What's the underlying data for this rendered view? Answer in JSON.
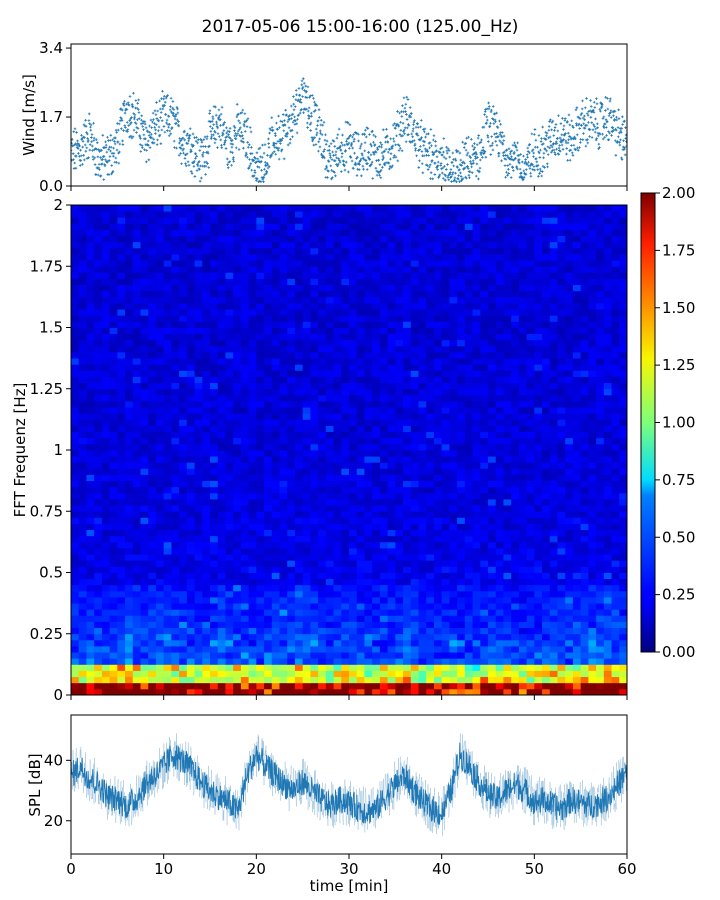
{
  "figure": {
    "title": "2017-05-06 15:00-16:00 (125.00_Hz)"
  },
  "colors": {
    "series": "#1f77b4",
    "frame": "#000000"
  },
  "chart_data": [
    {
      "type": "scatter",
      "ylabel": "Wind [m/s]",
      "xlim": [
        0,
        60
      ],
      "ylim": [
        0,
        3.5
      ],
      "yticks": [
        "0.0",
        "1.7",
        "3.4"
      ],
      "ytick_values": [
        0.0,
        1.7,
        3.4
      ],
      "grid": false,
      "wind_profile": {
        "t": [
          0,
          1,
          2,
          3,
          4,
          5,
          6,
          7,
          8,
          9,
          10,
          11,
          12,
          13,
          14,
          15,
          16,
          17,
          18,
          19,
          20,
          21,
          22,
          23,
          24,
          25,
          26,
          27,
          28,
          29,
          30,
          31,
          32,
          33,
          34,
          35,
          36,
          37,
          38,
          39,
          40,
          41,
          42,
          43,
          44,
          45,
          46,
          47,
          48,
          49,
          50,
          51,
          52,
          53,
          54,
          55,
          56,
          57,
          58,
          59,
          60
        ],
        "v": [
          0.8,
          0.9,
          1.3,
          0.6,
          0.7,
          1.0,
          1.9,
          1.7,
          1.1,
          1.4,
          1.7,
          1.6,
          1.1,
          1.0,
          0.6,
          1.2,
          1.6,
          0.9,
          1.4,
          1.2,
          0.3,
          0.6,
          1.2,
          1.3,
          1.6,
          2.4,
          1.7,
          1.2,
          0.5,
          0.9,
          1.0,
          0.7,
          1.0,
          0.7,
          0.8,
          1.1,
          1.7,
          1.3,
          0.9,
          0.7,
          0.6,
          0.3,
          0.4,
          0.6,
          0.7,
          1.5,
          1.2,
          0.8,
          0.6,
          0.4,
          0.8,
          0.9,
          1.2,
          1.3,
          1.1,
          1.5,
          1.6,
          1.5,
          1.7,
          1.3,
          1.0
        ]
      }
    },
    {
      "type": "heatmap",
      "ylabel": "FFT Frequenz [Hz]",
      "xlim": [
        0,
        60
      ],
      "ylim": [
        0,
        2
      ],
      "yticks": [
        "0",
        "0.25",
        "0.5",
        "0.75",
        "1",
        "1.25",
        "1.5",
        "1.75",
        "2"
      ],
      "ytick_values": [
        0,
        0.25,
        0.5,
        0.75,
        1,
        1.25,
        1.5,
        1.75,
        2
      ],
      "colormap": "jet",
      "color_range": [
        0,
        2
      ],
      "colorbar_ticks": [
        "0.00",
        "0.25",
        "0.50",
        "0.75",
        "1.00",
        "1.25",
        "1.50",
        "1.75",
        "2.00"
      ],
      "colorbar_tick_values": [
        0,
        0.25,
        0.5,
        0.75,
        1.0,
        1.25,
        1.5,
        1.75,
        2.0
      ]
    },
    {
      "type": "line",
      "ylabel": "SPL [dB]",
      "xlabel": "time [min]",
      "xlim": [
        0,
        60
      ],
      "ylim": [
        9,
        55
      ],
      "xticks": [
        "0",
        "10",
        "20",
        "30",
        "40",
        "50",
        "60"
      ],
      "xtick_values": [
        0,
        10,
        20,
        30,
        40,
        50,
        60
      ],
      "yticks": [
        "20",
        "40"
      ],
      "ytick_values": [
        20,
        40
      ],
      "spl_profile": {
        "t": [
          0,
          1,
          2,
          3,
          4,
          5,
          6,
          7,
          8,
          9,
          10,
          11,
          12,
          13,
          14,
          15,
          16,
          17,
          18,
          19,
          20,
          21,
          22,
          23,
          24,
          25,
          26,
          27,
          28,
          29,
          30,
          31,
          32,
          33,
          34,
          35,
          36,
          37,
          38,
          39,
          40,
          41,
          42,
          43,
          44,
          45,
          46,
          47,
          48,
          49,
          50,
          51,
          52,
          53,
          54,
          55,
          56,
          57,
          58,
          59,
          60
        ],
        "v": [
          35,
          38,
          34,
          32,
          28,
          27,
          25,
          27,
          32,
          35,
          38,
          42,
          40,
          37,
          33,
          30,
          28,
          26,
          23,
          35,
          42,
          38,
          35,
          32,
          30,
          33,
          30,
          27,
          25,
          27,
          26,
          24,
          23,
          24,
          28,
          32,
          35,
          30,
          26,
          24,
          22,
          30,
          42,
          38,
          33,
          29,
          27,
          30,
          32,
          30,
          26,
          27,
          25,
          24,
          27,
          26,
          25,
          26,
          28,
          32,
          36
        ]
      }
    }
  ]
}
